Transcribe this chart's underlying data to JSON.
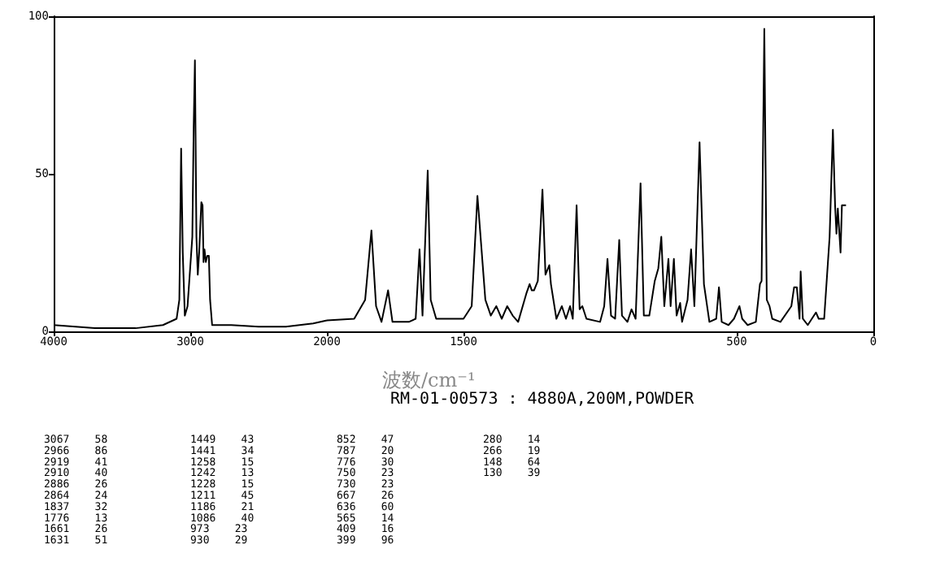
{
  "chart_data": [
    {
      "type": "line",
      "x": [
        4000,
        3700,
        3400,
        3200,
        3100,
        3080,
        3067,
        3055,
        3040,
        3020,
        2985,
        2975,
        2966,
        2955,
        2945,
        2935,
        2919,
        2910,
        2903,
        2896,
        2886,
        2875,
        2864,
        2855,
        2840,
        2700,
        2500,
        2300,
        2100,
        2000
      ],
      "values": [
        2,
        1,
        1,
        2,
        4,
        10,
        58,
        25,
        5,
        8,
        30,
        65,
        86,
        30,
        18,
        25,
        41,
        40,
        22,
        26,
        22,
        24,
        24,
        10,
        2,
        2,
        1.5,
        1.5,
        2.5,
        3.5
      ],
      "color": "#000000",
      "xlim": [
        4000,
        2000
      ],
      "xticks": [
        4000,
        3000
      ],
      "ylim": [
        0,
        100
      ],
      "yticks": [
        0,
        50,
        100
      ]
    },
    {
      "type": "line",
      "x": [
        2000,
        1900,
        1860,
        1837,
        1820,
        1800,
        1776,
        1760,
        1700,
        1675,
        1661,
        1650,
        1631,
        1620,
        1600,
        1500,
        1470,
        1449,
        1441,
        1420,
        1400,
        1380,
        1360,
        1340,
        1320,
        1300,
        1270,
        1258,
        1250,
        1242,
        1228,
        1211,
        1200,
        1186,
        1180,
        1160,
        1140,
        1125,
        1110,
        1100,
        1086,
        1075,
        1065,
        1050,
        1000,
        985,
        973,
        960,
        945,
        930,
        920,
        900,
        885,
        870,
        852,
        840,
        820,
        800,
        787,
        776,
        765,
        750,
        742,
        730,
        720,
        707,
        700,
        680,
        667,
        655,
        636,
        620,
        600,
        575,
        565,
        555,
        530,
        510,
        490,
        480,
        460,
        430,
        415,
        409,
        399,
        390,
        380,
        370,
        340,
        300,
        290,
        280,
        270,
        266,
        258,
        240,
        210,
        200,
        180,
        160,
        148,
        140,
        135,
        130,
        120,
        115,
        100
      ],
      "values": [
        3.5,
        4,
        10,
        32,
        8,
        3,
        13,
        3,
        3,
        4,
        26,
        5,
        51,
        10,
        4,
        4,
        8,
        43,
        34,
        10,
        5,
        8,
        4,
        8,
        5,
        3,
        12,
        15,
        13,
        13,
        16,
        45,
        18,
        21,
        15,
        4,
        8,
        4,
        8,
        4,
        40,
        7,
        8,
        4,
        3,
        8,
        23,
        5,
        4,
        29,
        5,
        3,
        7,
        4,
        47,
        5,
        5,
        16,
        20,
        30,
        8,
        23,
        8,
        23,
        5,
        9,
        3,
        10,
        26,
        8,
        60,
        15,
        3,
        4,
        14,
        3,
        2,
        4,
        8,
        4,
        2,
        3,
        15,
        16,
        96,
        10,
        8,
        4,
        3,
        8,
        14,
        14,
        4,
        19,
        4,
        2,
        6,
        4,
        4,
        30,
        64,
        40,
        31,
        39,
        25,
        40,
        40
      ],
      "color": "#000000",
      "xlim": [
        2000,
        0
      ],
      "xticks": [
        2000,
        1500,
        500,
        0
      ],
      "ylim": [
        0,
        100
      ],
      "tick_labels": "x",
      "xlabel": "波数/cm⁻¹",
      "subtitle": "RM-01-00573 : 4880A,200M,POWDER",
      "annotations": [
        "3067    58",
        "2966    86",
        "2919    41",
        "2910    40",
        "2886    26",
        "2864    24",
        "1837    32",
        "1776    13",
        "1661    26",
        "1631    51",
        "1449    43",
        "1441    34",
        "1258    15",
        "1242    13",
        "1228    15",
        "1211    45",
        "1186    21",
        "1086    40",
        "973    23",
        "930    29",
        "852    47",
        "787    20",
        "776    30",
        "750    23",
        "730    23",
        "667    26",
        "636    60",
        "565    14",
        "409    16",
        "399    96",
        "280    14",
        "266    19",
        "148    64",
        "130    39"
      ]
    }
  ]
}
